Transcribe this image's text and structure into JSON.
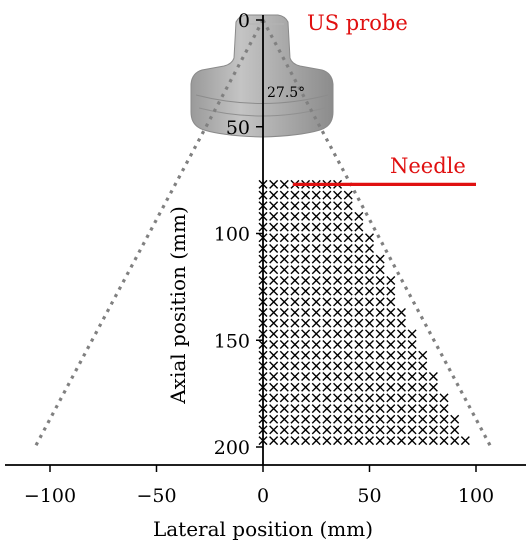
{
  "chart_data": {
    "type": "scatter",
    "title": "",
    "xlabel": "Lateral position (mm)",
    "ylabel": "Axial position (mm)",
    "xlim": [
      -118,
      120
    ],
    "ylim": [
      0,
      205
    ],
    "y_axis_inverted": true,
    "x_ticks": [
      {
        "value": -100,
        "label": "−100"
      },
      {
        "value": -50,
        "label": "−50"
      },
      {
        "value": 0,
        "label": "0"
      },
      {
        "value": 50,
        "label": "50"
      },
      {
        "value": 100,
        "label": "100"
      }
    ],
    "y_ticks": [
      {
        "value": 0,
        "label": "0"
      },
      {
        "value": 50,
        "label": "50"
      },
      {
        "value": 100,
        "label": "100"
      },
      {
        "value": 150,
        "label": "150"
      },
      {
        "value": 200,
        "label": "200"
      }
    ],
    "grid": false,
    "markers": {
      "symbol": "x",
      "color": "#000000",
      "lateral_start": 0,
      "lateral_step": 5,
      "axial_start": 77,
      "axial_step": 5,
      "axial_end": 197,
      "bound_line": {
        "from": [
          38,
          77
        ],
        "to": [
          97,
          200
        ]
      },
      "point_count": 390
    },
    "field_of_view": {
      "color": "#808080",
      "style": "dotted",
      "apex": [
        0,
        0
      ],
      "left_end": [
        -107,
        200
      ],
      "right_end": [
        107,
        200
      ]
    },
    "needle": {
      "label": "Needle",
      "color": "#e01010",
      "from": [
        14,
        77
      ],
      "to": [
        100,
        77
      ]
    },
    "probe": {
      "label": "US probe",
      "angle_label": "27.5°",
      "body_color": "#a0a0a0"
    }
  }
}
